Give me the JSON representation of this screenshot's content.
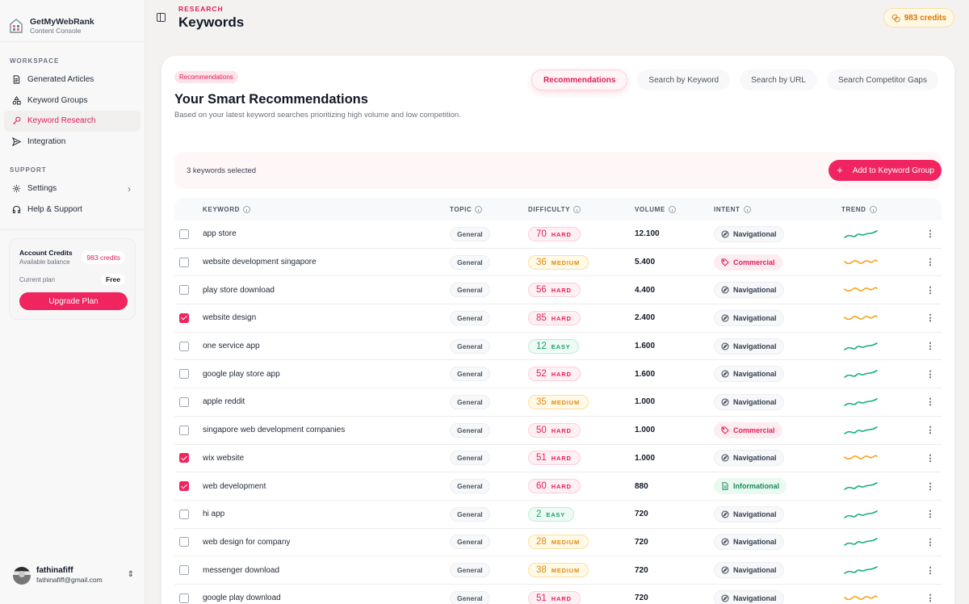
{
  "app": {
    "name": "GetMyWebRank",
    "subtitle": "Content Console"
  },
  "sidebar": {
    "workspace_label": "WORKSPACE",
    "workspace_items": [
      {
        "label": "Generated Articles",
        "icon": "document-icon",
        "active": false
      },
      {
        "label": "Keyword Groups",
        "icon": "shapes-icon",
        "active": false
      },
      {
        "label": "Keyword Research",
        "icon": "key-icon",
        "active": true
      },
      {
        "label": "Integration",
        "icon": "send-icon",
        "active": false
      }
    ],
    "support_label": "SUPPORT",
    "support_items": [
      {
        "label": "Settings",
        "icon": "gear-icon",
        "has_chevron": true
      },
      {
        "label": "Help & Support",
        "icon": "headphones-icon",
        "has_chevron": false
      }
    ],
    "credits_card": {
      "title": "Account Credits",
      "subtitle": "Available balance",
      "credits": "983 credits",
      "plan_label": "Current plan",
      "plan_value": "Free",
      "upgrade_label": "Upgrade Plan"
    },
    "user": {
      "name": "fathinafiff",
      "email": "fathinafiff@gmail.com"
    }
  },
  "header": {
    "breadcrumb": "RESEARCH",
    "title": "Keywords",
    "credits": "983 credits"
  },
  "main": {
    "tag": "Recommendations",
    "title": "Your Smart Recommendations",
    "subtitle": "Based on your latest keyword searches prioritizing high volume and low competition.",
    "tabs": [
      {
        "label": "Recommendations",
        "active": true
      },
      {
        "label": "Search by Keyword",
        "active": false
      },
      {
        "label": "Search by URL",
        "active": false
      },
      {
        "label": "Search Competitor Gaps",
        "active": false
      }
    ],
    "selection": {
      "count_text": "3 keywords selected",
      "add_button": "Add to Keyword Group"
    },
    "columns": [
      "KEYWORD",
      "TOPIC",
      "DIFFICULTY",
      "VOLUME",
      "INTENT",
      "TREND"
    ],
    "rows": [
      {
        "checked": false,
        "keyword": "app store",
        "topic": "General",
        "difficulty": "70",
        "level": "HARD",
        "volume": "12.100",
        "intent": "Navigational",
        "trend": "up"
      },
      {
        "checked": false,
        "keyword": "website development singapore",
        "topic": "General",
        "difficulty": "36",
        "level": "MEDIUM",
        "volume": "5.400",
        "intent": "Commercial",
        "trend": "flat"
      },
      {
        "checked": false,
        "keyword": "play store download",
        "topic": "General",
        "difficulty": "56",
        "level": "HARD",
        "volume": "4.400",
        "intent": "Navigational",
        "trend": "flat"
      },
      {
        "checked": true,
        "keyword": "website design",
        "topic": "General",
        "difficulty": "85",
        "level": "HARD",
        "volume": "2.400",
        "intent": "Navigational",
        "trend": "flat"
      },
      {
        "checked": false,
        "keyword": "one service app",
        "topic": "General",
        "difficulty": "12",
        "level": "EASY",
        "volume": "1.600",
        "intent": "Navigational",
        "trend": "up"
      },
      {
        "checked": false,
        "keyword": "google play store app",
        "topic": "General",
        "difficulty": "52",
        "level": "HARD",
        "volume": "1.600",
        "intent": "Navigational",
        "trend": "up"
      },
      {
        "checked": false,
        "keyword": "apple reddit",
        "topic": "General",
        "difficulty": "35",
        "level": "MEDIUM",
        "volume": "1.000",
        "intent": "Navigational",
        "trend": "up"
      },
      {
        "checked": false,
        "keyword": "singapore web development companies",
        "topic": "General",
        "difficulty": "50",
        "level": "HARD",
        "volume": "1.000",
        "intent": "Commercial",
        "trend": "up"
      },
      {
        "checked": true,
        "keyword": "wix website",
        "topic": "General",
        "difficulty": "51",
        "level": "HARD",
        "volume": "1.000",
        "intent": "Navigational",
        "trend": "flat"
      },
      {
        "checked": true,
        "keyword": "web development",
        "topic": "General",
        "difficulty": "60",
        "level": "HARD",
        "volume": "880",
        "intent": "Informational",
        "trend": "up"
      },
      {
        "checked": false,
        "keyword": "hi app",
        "topic": "General",
        "difficulty": "2",
        "level": "EASY",
        "volume": "720",
        "intent": "Navigational",
        "trend": "up"
      },
      {
        "checked": false,
        "keyword": "web design for company",
        "topic": "General",
        "difficulty": "28",
        "level": "MEDIUM",
        "volume": "720",
        "intent": "Navigational",
        "trend": "up"
      },
      {
        "checked": false,
        "keyword": "messenger download",
        "topic": "General",
        "difficulty": "38",
        "level": "MEDIUM",
        "volume": "720",
        "intent": "Navigational",
        "trend": "up"
      },
      {
        "checked": false,
        "keyword": "google play download",
        "topic": "General",
        "difficulty": "51",
        "level": "HARD",
        "volume": "720",
        "intent": "Navigational",
        "trend": "flat"
      }
    ]
  },
  "colors": {
    "accent": "#f0245f",
    "hard": "#e11d58",
    "medium": "#e08a10",
    "easy": "#16a065",
    "trend_up": "#16b07a",
    "trend_flat": "#f5a41f",
    "credits_badge": "#d97706"
  }
}
